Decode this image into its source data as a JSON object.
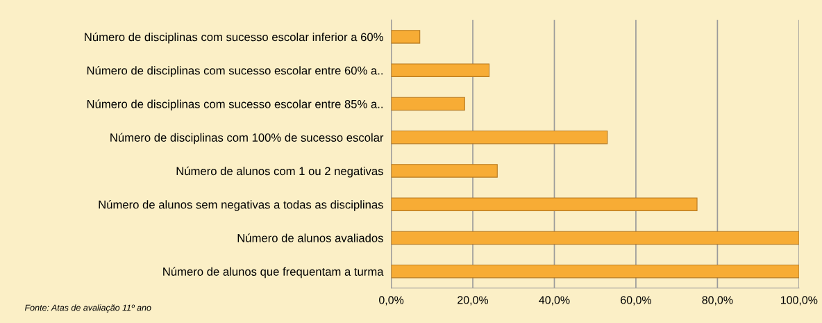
{
  "chart_data": {
    "type": "bar",
    "orientation": "horizontal",
    "categories": [
      "Número de disciplinas com sucesso escolar inferior a 60%",
      "Número de disciplinas com sucesso escolar entre 60% a..",
      "Número de disciplinas com sucesso escolar entre 85% a..",
      "Número de disciplinas com 100% de sucesso escolar",
      "Número de alunos com 1 ou 2 negativas",
      "Número de alunos sem negativas a todas as disciplinas",
      "Número de alunos avaliados",
      "Número de alunos que frequentam a turma"
    ],
    "values": [
      7,
      24,
      18,
      53,
      26,
      75,
      100,
      100
    ],
    "color": "#f7ac35",
    "xlim": [
      0,
      100
    ],
    "xticks": [
      {
        "value": 0,
        "label": "0,0%"
      },
      {
        "value": 20,
        "label": "20,0%"
      },
      {
        "value": 40,
        "label": "40,0%"
      },
      {
        "value": 60,
        "label": "60,0%"
      },
      {
        "value": 80,
        "label": "80,0%"
      },
      {
        "value": 100,
        "label": "100,0%"
      }
    ],
    "grid": "x",
    "annotations": [
      "Fonte: Atas de avaliação 11º ano"
    ]
  }
}
